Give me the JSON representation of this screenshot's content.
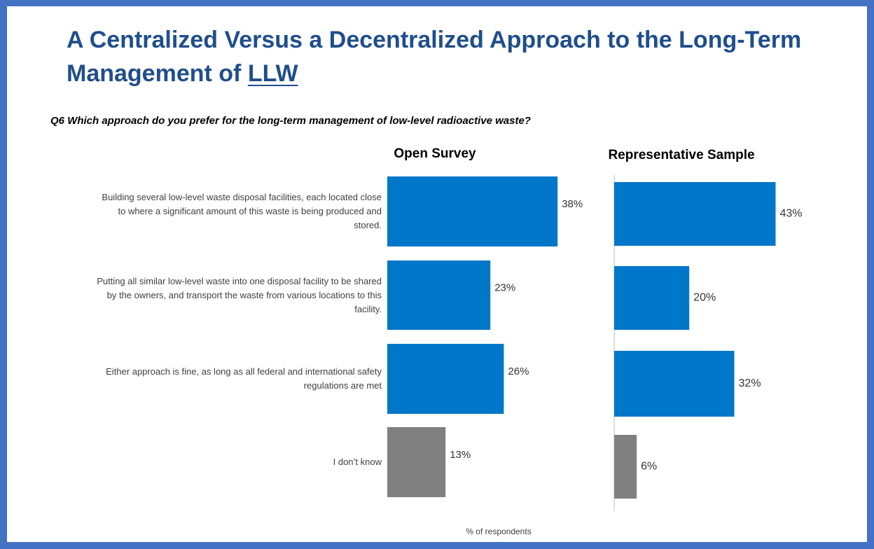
{
  "title": "A Centralized Versus a Decentralized Approach to the Long-Term Management of",
  "title_link": "LLW",
  "question": "Q6 Which approach do you prefer for the long-term management of low-level radioactive waste?",
  "chart_data": [
    {
      "type": "bar",
      "orientation": "horizontal",
      "title": "Open Survey",
      "categories": [
        "Building several low-level waste disposal facilities, each located close to where a significant amount of this waste is being produced and stored.",
        "Putting all similar low-level waste into one disposal facility to be shared by the owners, and transport the waste from various locations to this facility.",
        "Either approach is fine, as long as all federal and international safety regulations are met",
        "I don’t know"
      ],
      "values": [
        38,
        23,
        26,
        13
      ],
      "value_labels": [
        "38%",
        "23%",
        "26%",
        "13%"
      ],
      "colors": [
        "#0077c8",
        "#0077c8",
        "#0077c8",
        "#808080"
      ],
      "xlim": [
        0,
        50
      ],
      "xlabel": "% of respondents"
    },
    {
      "type": "bar",
      "orientation": "horizontal",
      "title": "Representative Sample",
      "values": [
        43,
        20,
        32,
        6
      ],
      "value_labels": [
        "43%",
        "20%",
        "32%",
        "6%"
      ],
      "colors": [
        "#0077c8",
        "#0077c8",
        "#0077c8",
        "#808080"
      ],
      "xlim": [
        0,
        50
      ]
    }
  ]
}
